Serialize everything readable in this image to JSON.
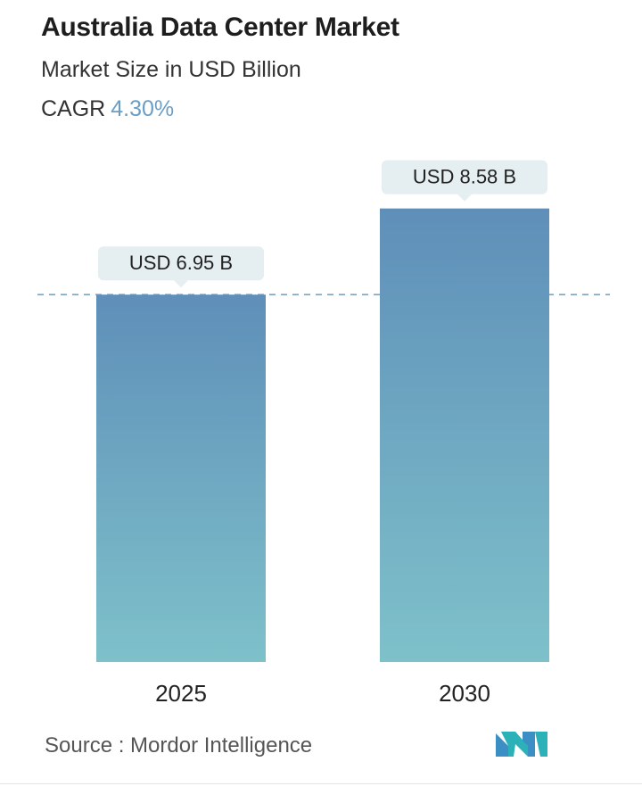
{
  "chart_data": {
    "type": "bar",
    "title": "Australia Data Center Market",
    "subtitle": "Market Size in USD Billion",
    "cagr_label": "CAGR",
    "cagr_value": "4.30%",
    "categories": [
      "2025",
      "2030"
    ],
    "values": [
      6.95,
      8.58
    ],
    "data_labels": [
      "USD 6.95 B",
      "USD 8.58 B"
    ],
    "ylim": [
      0,
      9.3
    ],
    "reference_line": 6.95,
    "grid": false,
    "colors": {
      "bar_top": "#5f8fb9",
      "bar_bottom": "#7ec1ca",
      "label_bg": "#e5eef1",
      "reference_line": "#7fa3bd"
    }
  },
  "footer": {
    "source_text": "Source :  Mordor Intelligence",
    "logo_icon": "mordor-intelligence-logo-icon"
  }
}
